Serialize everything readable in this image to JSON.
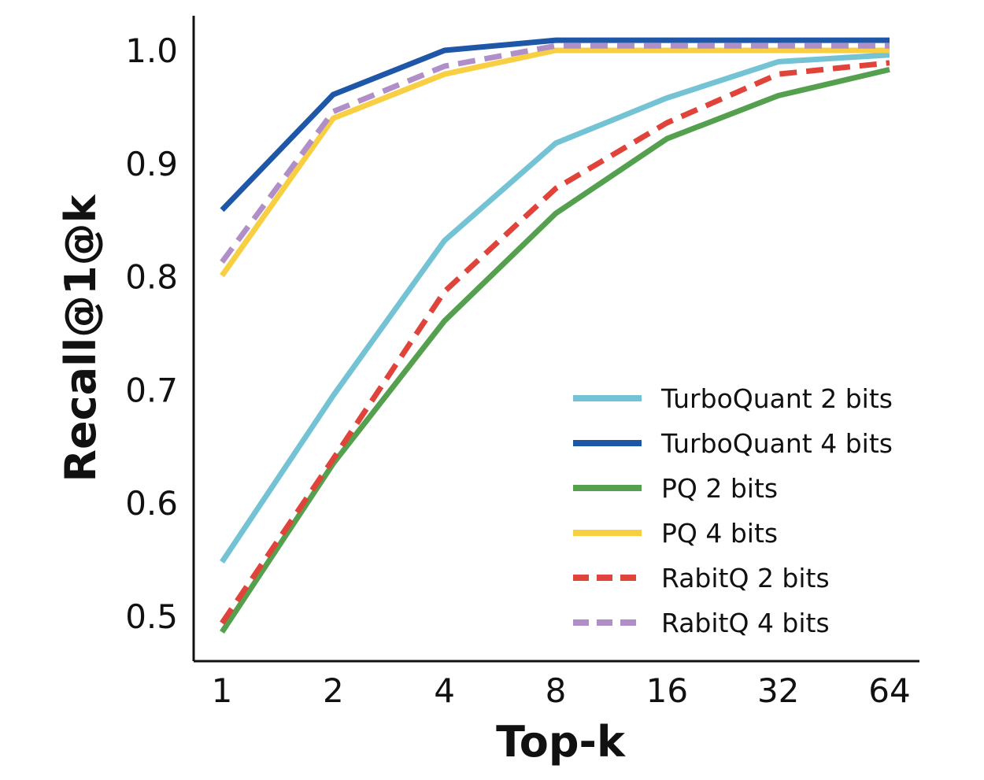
{
  "chart_data": {
    "type": "line",
    "title": "",
    "xlabel": "Top-k",
    "ylabel": "Recall@1@k",
    "x_scale": "log2",
    "x": [
      1,
      2,
      4,
      8,
      16,
      32,
      64
    ],
    "x_tick_labels": [
      "1",
      "2",
      "4",
      "8",
      "16",
      "32",
      "64"
    ],
    "y_ticks": [
      0.5,
      0.6,
      0.7,
      0.8,
      0.9,
      1.0
    ],
    "y_tick_labels": [
      "0.5",
      "0.6",
      "0.7",
      "0.8",
      "0.9",
      "1.0"
    ],
    "ylim": [
      0.48,
      1.01
    ],
    "grid": false,
    "legend_position": "lower-right",
    "series": [
      {
        "name": "TurboQuant 2 bits",
        "color": "#74c3d5",
        "dash": "solid",
        "values": [
          0.548,
          0.695,
          0.832,
          0.918,
          0.958,
          0.99,
          0.996
        ]
      },
      {
        "name": "TurboQuant 4 bits",
        "color": "#1f57a8",
        "dash": "solid",
        "values": [
          0.859,
          0.961,
          1.0,
          1.009,
          1.009,
          1.009,
          1.009
        ]
      },
      {
        "name": "PQ 2 bits",
        "color": "#55a04e",
        "dash": "solid",
        "values": [
          0.486,
          0.635,
          0.761,
          0.856,
          0.922,
          0.96,
          0.983
        ]
      },
      {
        "name": "PQ 4 bits",
        "color": "#f8cf43",
        "dash": "solid",
        "values": [
          0.801,
          0.94,
          0.979,
          1.0,
          1.0,
          1.0,
          1.0
        ]
      },
      {
        "name": "RabitQ 2 bits",
        "color": "#e0433a",
        "dash": "dashed",
        "values": [
          0.494,
          0.639,
          0.787,
          0.878,
          0.936,
          0.979,
          0.989
        ]
      },
      {
        "name": "RabitQ 4 bits",
        "color": "#b08ec7",
        "dash": "dashed",
        "values": [
          0.813,
          0.946,
          0.986,
          1.004,
          1.004,
          1.004,
          1.004
        ]
      }
    ]
  }
}
